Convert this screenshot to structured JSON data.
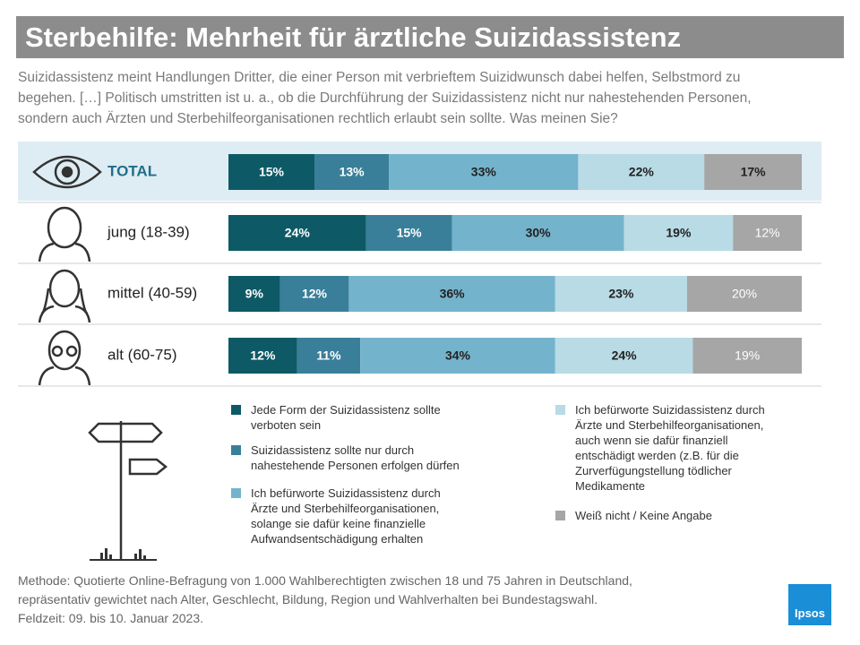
{
  "chart_data": {
    "type": "bar",
    "orientation": "horizontal",
    "stacked": true,
    "title": "Sterbehilfe: Mehrheit für ärztliche Suizidassistenz",
    "subtitle": [
      "Suizidassistenz meint Handlungen Dritter, die einer Person mit verbrieftem Suizidwunsch dabei helfen, Selbstmord zu",
      "begehen. […] Politisch umstritten ist u. a., ob die Durchführung der Suizidassistenz nicht nur nahestehenden Personen,",
      "sondern auch Ärzten und Sterbehilfeorganisationen rechtlich erlaubt sein sollte. Was meinen Sie?"
    ],
    "categories": [
      "TOTAL",
      "jung (18-39)",
      "mittel (40-59)",
      "alt (60-75)"
    ],
    "series": [
      {
        "name": "Jede Form der Suizidassistenz sollte verboten sein",
        "color": "#0d5a66",
        "values": [
          15,
          24,
          9,
          12
        ],
        "value_labels": [
          "15%",
          "24%",
          "9%",
          "12%"
        ]
      },
      {
        "name": "Suizidassistenz sollte nur durch nahestehende Personen erfolgen dürfen",
        "color": "#3a7f99",
        "values": [
          13,
          15,
          12,
          11
        ],
        "value_labels": [
          "13%",
          "15%",
          "12%",
          "11%"
        ]
      },
      {
        "name": "Ich befürworte Suizidassistenz durch Ärzte und Sterbehilfeorganisationen, solange sie dafür keine finanzielle Aufwandsentschädigung erhalten",
        "color": "#74b3cc",
        "values": [
          33,
          30,
          36,
          34
        ],
        "value_labels": [
          "33%",
          "30%",
          "36%",
          "34%"
        ]
      },
      {
        "name": "Ich befürworte Suizidassistenz durch Ärzte und Sterbehilfeorganisationen, auch wenn sie dafür finanziell entschädigt werden (z.B. für die Zurverfügungstellung tödlicher Medikamente",
        "color": "#b8dbe5",
        "values": [
          22,
          19,
          23,
          24
        ],
        "value_labels": [
          "22%",
          "19%",
          "23%",
          "24%"
        ]
      },
      {
        "name": "Weiß nicht / Keine Angabe",
        "color": "#a6a6a6",
        "values": [
          17,
          12,
          20,
          19
        ],
        "value_labels": [
          "17%",
          "12%",
          "20%",
          "19%"
        ]
      }
    ],
    "note": [
      "Methode: Quotierte Online-Befragung  von 1.000 Wahlberechtigten  zwischen 18 und 75 Jahren in Deutschland,",
      "repräsentativ  gewichtet  nach Alter, Geschlecht,  Bildung,  Region  und Wahlverhalten  bei Bundestagswahl.",
      "Feldzeit: 09. bis 10. Januar 2023."
    ],
    "logo": "Ipsos"
  }
}
